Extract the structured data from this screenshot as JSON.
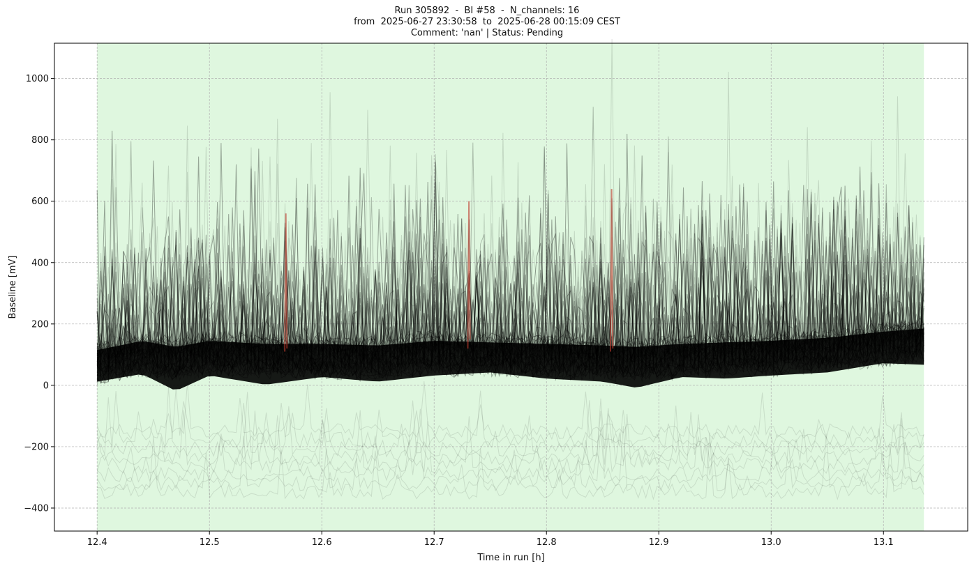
{
  "title": {
    "line1": "Run 305892  -  BI #58  -  N_channels: 16",
    "line2": "from  2025-06-27 23:30:58  to  2025-06-28 00:15:09 CEST",
    "line3": "Comment: 'nan' | Status: Pending"
  },
  "colors": {
    "background_band": "#dff7df",
    "traces": "#000000",
    "highlight_traces": "#c0392b",
    "grid": "#b0b0b0"
  },
  "chart_data": {
    "type": "line",
    "xlabel": "Time in run [h]",
    "ylabel": "Baseline [mV]",
    "xlim": [
      12.362,
      13.175
    ],
    "ylim": [
      -475,
      1115
    ],
    "xticks": [
      12.4,
      12.5,
      12.6,
      12.7,
      12.8,
      12.9,
      13.0,
      13.1
    ],
    "xtick_labels": [
      "12.4",
      "12.5",
      "12.6",
      "12.7",
      "12.8",
      "12.9",
      "13.0",
      "13.1"
    ],
    "yticks": [
      -400,
      -200,
      0,
      200,
      400,
      600,
      800,
      1000
    ],
    "ytick_labels": [
      "−400",
      "−200",
      "0",
      "200",
      "400",
      "600",
      "800",
      "1000"
    ],
    "shaded_region": [
      12.4,
      13.136
    ],
    "grid": true,
    "trace_band": {
      "x": [
        12.4,
        12.44,
        12.47,
        12.5,
        12.55,
        12.6,
        12.65,
        12.7,
        12.75,
        12.8,
        12.85,
        12.88,
        12.92,
        12.96,
        13.0,
        13.05,
        13.1,
        13.136
      ],
      "center": [
        60,
        90,
        70,
        90,
        80,
        80,
        75,
        90,
        85,
        80,
        75,
        70,
        80,
        85,
        90,
        100,
        120,
        130
      ],
      "lower_edge": [
        0,
        25,
        -30,
        20,
        -10,
        15,
        0,
        20,
        30,
        10,
        0,
        -20,
        15,
        10,
        20,
        30,
        60,
        55
      ],
      "upper_typical": [
        350,
        420,
        400,
        420,
        400,
        420,
        420,
        430,
        420,
        430,
        420,
        430,
        440,
        450,
        460,
        470,
        480,
        450
      ]
    },
    "series": [
      {
        "x": [
          12.73,
          12.731,
          12.732
        ],
        "values": [
          120,
          600,
          150
        ]
      },
      {
        "x": [
          12.567,
          12.568,
          12.569
        ],
        "values": [
          110,
          560,
          120
        ]
      },
      {
        "x": [
          12.857,
          12.858,
          12.859
        ],
        "values": [
          110,
          640,
          120
        ]
      }
    ]
  }
}
